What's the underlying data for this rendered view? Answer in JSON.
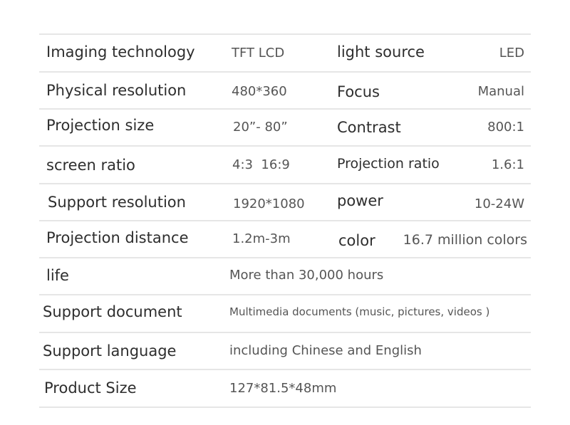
{
  "rows": [
    {
      "label": "Imaging technology",
      "value": "TFT LCD",
      "label2": "light source",
      "value2": "LED"
    },
    {
      "label": "Physical resolution",
      "value": "480*360",
      "label2": "Focus",
      "value2": "Manual"
    },
    {
      "label": "Projection size",
      "value": "20”- 80”",
      "label2": "Contrast",
      "value2": "800:1"
    },
    {
      "label": "screen ratio",
      "value": "4:3  16:9",
      "label2": "Projection ratio",
      "value2": "1.6:1"
    },
    {
      "label": "Support resolution",
      "value": "1920*1080",
      "label2": "power",
      "value2": "10-24W"
    },
    {
      "label": "Projection distance",
      "value": "1.2m-3m",
      "label2": "color",
      "value2": "16.7 million colors"
    },
    {
      "label": "life",
      "value": "More than 30,000 hours"
    },
    {
      "label": "Support document",
      "value": "Multimedia documents (music, pictures, videos )"
    },
    {
      "label": "Support language",
      "value": "including Chinese and English"
    },
    {
      "label": "Product Size",
      "value": "127*81.5*48mm"
    }
  ]
}
